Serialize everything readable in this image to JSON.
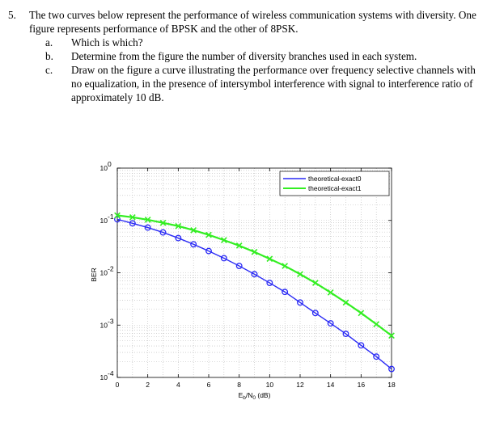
{
  "question": {
    "number": "5.",
    "stem": "The two curves below represent the performance of wireless communication systems with diversity. One figure represents performance of BPSK and the other of 8PSK.",
    "parts": [
      {
        "label": "a.",
        "text": "Which is which?"
      },
      {
        "label": "b.",
        "text": "Determine from the figure the number of diversity branches used in each system."
      },
      {
        "label": "c.",
        "text": "Draw on the figure a curve illustrating the performance over frequency selective channels with no equalization, in the presence of intersymbol interference with signal to interference ratio of approximately 10 dB."
      }
    ]
  },
  "chart_data": {
    "type": "line",
    "title": "",
    "xlabel": "E_b/N_0 (dB)",
    "ylabel": "BER",
    "xlim": [
      0,
      18
    ],
    "ylim": [
      0.0001,
      1
    ],
    "yscale": "log",
    "grid": true,
    "legend_position": "top-right",
    "x_ticks": [
      0,
      2,
      4,
      6,
      8,
      10,
      12,
      14,
      16,
      18
    ],
    "y_tick_labels": [
      {
        "mant": "10",
        "exp": "0"
      },
      {
        "mant": "10",
        "exp": "-1"
      },
      {
        "mant": "10",
        "exp": "-2"
      },
      {
        "mant": "10",
        "exp": "-3"
      },
      {
        "mant": "10",
        "exp": "-4"
      }
    ],
    "series": [
      {
        "name": "theoretical-exact0",
        "color": "#2a2af5",
        "marker": "circle",
        "x": [
          0,
          1,
          2,
          3,
          4,
          5,
          6,
          7,
          8,
          9,
          10,
          11,
          12,
          13,
          14,
          15,
          16,
          17,
          18
        ],
        "y": [
          0.105,
          0.088,
          0.073,
          0.059,
          0.046,
          0.035,
          0.026,
          0.019,
          0.0135,
          0.0094,
          0.0064,
          0.0043,
          0.0027,
          0.0017,
          0.00108,
          0.00068,
          0.00041,
          0.00025,
          0.000145
        ]
      },
      {
        "name": "theoretical-exact1",
        "color": "#33ee22",
        "marker": "x",
        "x": [
          0,
          1,
          2,
          3,
          4,
          5,
          6,
          7,
          8,
          9,
          10,
          11,
          12,
          13,
          14,
          15,
          16,
          17,
          18
        ],
        "y": [
          0.125,
          0.115,
          0.103,
          0.09,
          0.078,
          0.065,
          0.053,
          0.042,
          0.033,
          0.025,
          0.0185,
          0.0135,
          0.0094,
          0.0064,
          0.0042,
          0.0027,
          0.0017,
          0.00104,
          0.00063
        ]
      }
    ]
  }
}
